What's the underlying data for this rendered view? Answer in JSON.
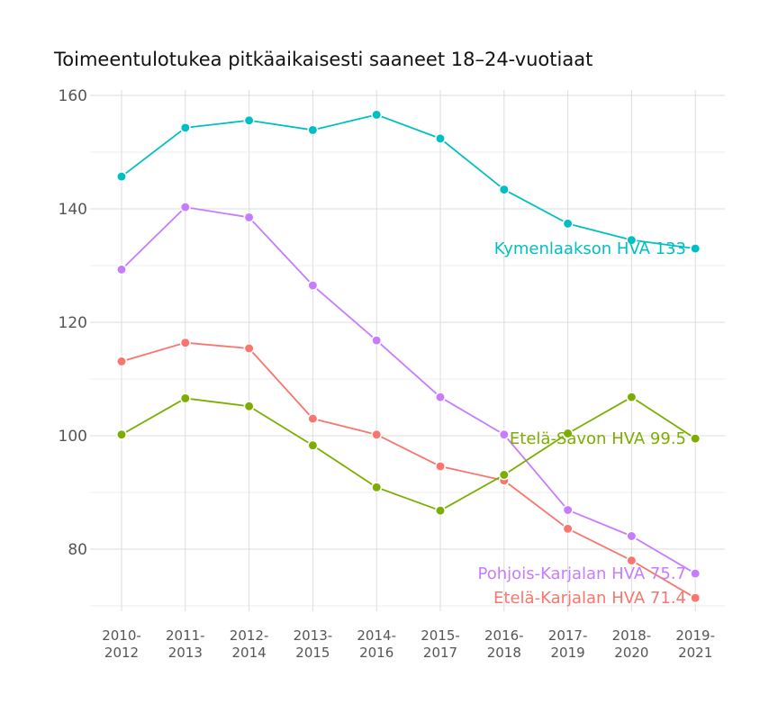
{
  "chart_data": {
    "type": "line",
    "title": "Toimeentulotukea pitkäaikaisesti saaneet 18–24-vuotiaat",
    "xlabel": "",
    "ylabel": "",
    "categories": [
      [
        "2010-",
        "2012"
      ],
      [
        "2011-",
        "2013"
      ],
      [
        "2012-",
        "2014"
      ],
      [
        "2013-",
        "2015"
      ],
      [
        "2014-",
        "2016"
      ],
      [
        "2015-",
        "2017"
      ],
      [
        "2016-",
        "2018"
      ],
      [
        "2017-",
        "2019"
      ],
      [
        "2018-",
        "2020"
      ],
      [
        "2019-",
        "2021"
      ]
    ],
    "ylim": [
      70,
      160
    ],
    "yticks": [
      80,
      100,
      120,
      140,
      160
    ],
    "grid": true,
    "series": [
      {
        "name": "Kymenlaakson HVA",
        "color": "#00BFC4",
        "values": [
          145.7,
          154.3,
          155.6,
          153.9,
          156.6,
          152.4,
          143.4,
          137.4,
          134.5,
          133
        ],
        "end_label": "Kymenlaakson HVA 133"
      },
      {
        "name": "Pohjois-Karjalan HVA",
        "color": "#C77CFF",
        "values": [
          129.3,
          140.3,
          138.5,
          126.5,
          116.8,
          106.8,
          100.2,
          86.9,
          82.3,
          75.7
        ],
        "end_label": "Pohjois-Karjalan HVA 75.7"
      },
      {
        "name": "Etelä-Karjalan HVA",
        "color": "#F8766D",
        "values": [
          113.1,
          116.4,
          115.4,
          103.0,
          100.2,
          94.6,
          92.1,
          83.6,
          78.0,
          71.4
        ],
        "end_label": "Etelä-Karjalan HVA 71.4"
      },
      {
        "name": "Etelä-Savon HVA",
        "color": "#7CAE00",
        "values": [
          100.2,
          106.6,
          105.2,
          98.3,
          90.9,
          86.8,
          93.1,
          100.4,
          106.8,
          99.5
        ],
        "end_label": "Etelä-Savon HVA 99.5"
      }
    ]
  }
}
